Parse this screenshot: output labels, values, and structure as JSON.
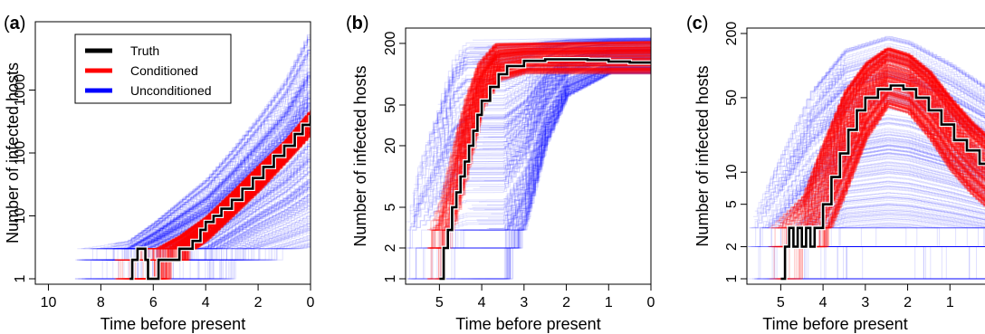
{
  "legend": {
    "items": [
      {
        "label": "Truth",
        "color": "#000000"
      },
      {
        "label": "Conditioned",
        "color": "#ff0000"
      },
      {
        "label": "Unconditioned",
        "color": "#0000ff"
      }
    ]
  },
  "chart_data": [
    {
      "panel": "(a)",
      "type": "line",
      "xlabel": "Time before present",
      "ylabel": "Number of infected hosts",
      "x_reversed": true,
      "y_scale": "log",
      "xlim": [
        10.5,
        0
      ],
      "ylim": [
        1,
        10000
      ],
      "xticks": [
        "10",
        "8",
        "6",
        "4",
        "2",
        "0"
      ],
      "xtick_values": [
        10,
        8,
        6,
        4,
        2,
        0
      ],
      "yticks": [
        "1",
        "10",
        "100",
        "1000"
      ],
      "ytick_values": [
        1,
        10,
        100,
        1000
      ],
      "legend_position": "top-left",
      "series": [
        {
          "name": "Truth",
          "color": "#000000",
          "points": [
            [
              6.9,
              1
            ],
            [
              6.8,
              2
            ],
            [
              6.6,
              3
            ],
            [
              6.3,
              2
            ],
            [
              6.2,
              1
            ],
            [
              5.9,
              1
            ],
            [
              5.8,
              2
            ],
            [
              5.2,
              2
            ],
            [
              5.0,
              3
            ],
            [
              4.7,
              3
            ],
            [
              4.5,
              4
            ],
            [
              4.2,
              6
            ],
            [
              4.0,
              8
            ],
            [
              3.7,
              10
            ],
            [
              3.4,
              13
            ],
            [
              3.0,
              18
            ],
            [
              2.6,
              27
            ],
            [
              2.2,
              40
            ],
            [
              1.8,
              60
            ],
            [
              1.4,
              90
            ],
            [
              1.0,
              130
            ],
            [
              0.6,
              200
            ],
            [
              0.3,
              280
            ],
            [
              0,
              400
            ]
          ]
        },
        {
          "name": "Conditioned",
          "color": "#ff0000",
          "band_low": [
            [
              7.5,
              1
            ],
            [
              6,
              1
            ],
            [
              5,
              2
            ],
            [
              4,
              4
            ],
            [
              3,
              10
            ],
            [
              2,
              25
            ],
            [
              1,
              70
            ],
            [
              0,
              200
            ]
          ],
          "band_high": [
            [
              7.5,
              2
            ],
            [
              6,
              3
            ],
            [
              5,
              5
            ],
            [
              4,
              10
            ],
            [
              3,
              25
            ],
            [
              2,
              65
            ],
            [
              1,
              160
            ],
            [
              0,
              500
            ]
          ]
        },
        {
          "name": "Unconditioned",
          "color": "#0000ff",
          "band_low": [
            [
              9,
              1
            ],
            [
              6,
              1
            ],
            [
              4,
              1
            ],
            [
              2,
              2
            ],
            [
              0,
              3
            ]
          ],
          "band_high": [
            [
              9,
              3
            ],
            [
              7,
              4
            ],
            [
              6,
              8
            ],
            [
              4,
              40
            ],
            [
              3,
              120
            ],
            [
              2,
              400
            ],
            [
              1,
              1500
            ],
            [
              0,
              10000
            ]
          ]
        }
      ]
    },
    {
      "panel": "(b)",
      "type": "line",
      "xlabel": "Time before present",
      "ylabel": "Number of infected hosts",
      "x_reversed": true,
      "y_scale": "log",
      "xlim": [
        5.8,
        0
      ],
      "ylim": [
        1,
        250
      ],
      "xticks": [
        "5",
        "4",
        "3",
        "2",
        "1",
        "0"
      ],
      "xtick_values": [
        5,
        4,
        3,
        2,
        1,
        0
      ],
      "yticks": [
        "1",
        "2",
        "5",
        "20",
        "50",
        "200"
      ],
      "ytick_values": [
        1,
        2,
        5,
        20,
        50,
        200
      ],
      "series": [
        {
          "name": "Truth",
          "color": "#000000",
          "points": [
            [
              5.0,
              1
            ],
            [
              4.9,
              2
            ],
            [
              4.8,
              3
            ],
            [
              4.7,
              5
            ],
            [
              4.6,
              7
            ],
            [
              4.5,
              10
            ],
            [
              4.4,
              14
            ],
            [
              4.3,
              20
            ],
            [
              4.2,
              28
            ],
            [
              4.1,
              40
            ],
            [
              4.0,
              55
            ],
            [
              3.8,
              75
            ],
            [
              3.6,
              100
            ],
            [
              3.4,
              120
            ],
            [
              3.0,
              135
            ],
            [
              2.5,
              140
            ],
            [
              2.0,
              140
            ],
            [
              1.5,
              138
            ],
            [
              1.0,
              133
            ],
            [
              0.5,
              130
            ],
            [
              0,
              128
            ]
          ]
        },
        {
          "name": "Conditioned",
          "color": "#ff0000",
          "band_low": [
            [
              5.1,
              1
            ],
            [
              4.8,
              2
            ],
            [
              4.5,
              6
            ],
            [
              4.2,
              20
            ],
            [
              4.0,
              45
            ],
            [
              3.6,
              85
            ],
            [
              3,
              100
            ],
            [
              0,
              100
            ]
          ],
          "band_high": [
            [
              5.3,
              3
            ],
            [
              5.0,
              6
            ],
            [
              4.7,
              20
            ],
            [
              4.4,
              60
            ],
            [
              4.1,
              130
            ],
            [
              3.7,
              200
            ],
            [
              0,
              210
            ]
          ]
        },
        {
          "name": "Unconditioned",
          "color": "#0000ff",
          "band_low": [
            [
              5.8,
              1
            ],
            [
              3.5,
              1
            ],
            [
              3,
              3
            ],
            [
              2.5,
              20
            ],
            [
              2,
              60
            ],
            [
              1,
              100
            ],
            [
              0,
              100
            ]
          ],
          "band_high": [
            [
              5.8,
              4
            ],
            [
              5.5,
              15
            ],
            [
              5.0,
              60
            ],
            [
              4.7,
              150
            ],
            [
              4.4,
              220
            ],
            [
              0,
              230
            ]
          ]
        }
      ]
    },
    {
      "panel": "(c)",
      "type": "line",
      "xlabel": "Time before present",
      "ylabel": "Number of infected hosts",
      "x_reversed": true,
      "y_scale": "log",
      "xlim": [
        5.8,
        0
      ],
      "ylim": [
        1,
        200
      ],
      "xticks": [
        "5",
        "4",
        "3",
        "2",
        "1",
        "0"
      ],
      "xtick_values": [
        5,
        4,
        3,
        2,
        1,
        0
      ],
      "yticks": [
        "1",
        "2",
        "5",
        "10",
        "50",
        "200"
      ],
      "ytick_values": [
        1,
        2,
        5,
        10,
        50,
        200
      ],
      "series": [
        {
          "name": "Truth",
          "color": "#000000",
          "points": [
            [
              5.0,
              1
            ],
            [
              4.9,
              2
            ],
            [
              4.8,
              3
            ],
            [
              4.7,
              2
            ],
            [
              4.6,
              3
            ],
            [
              4.5,
              2
            ],
            [
              4.4,
              3
            ],
            [
              4.3,
              2
            ],
            [
              4.2,
              3
            ],
            [
              4.0,
              5
            ],
            [
              3.8,
              9
            ],
            [
              3.6,
              15
            ],
            [
              3.4,
              25
            ],
            [
              3.2,
              38
            ],
            [
              3.0,
              50
            ],
            [
              2.7,
              60
            ],
            [
              2.4,
              65
            ],
            [
              2.1,
              60
            ],
            [
              1.8,
              50
            ],
            [
              1.5,
              38
            ],
            [
              1.2,
              28
            ],
            [
              0.9,
              20
            ],
            [
              0.6,
              16
            ],
            [
              0.3,
              12
            ],
            [
              0.1,
              10
            ],
            [
              0,
              8
            ]
          ]
        },
        {
          "name": "Conditioned",
          "color": "#ff0000",
          "band_low": [
            [
              5,
              1
            ],
            [
              4,
              2
            ],
            [
              3.5,
              6
            ],
            [
              3,
              20
            ],
            [
              2.5,
              40
            ],
            [
              2,
              35
            ],
            [
              1.5,
              20
            ],
            [
              1,
              10
            ],
            [
              0.5,
              6
            ],
            [
              0,
              4
            ]
          ],
          "band_high": [
            [
              5.3,
              3
            ],
            [
              4.5,
              6
            ],
            [
              4,
              20
            ],
            [
              3.5,
              60
            ],
            [
              3,
              110
            ],
            [
              2.5,
              150
            ],
            [
              2,
              130
            ],
            [
              1.5,
              90
            ],
            [
              1,
              50
            ],
            [
              0.5,
              30
            ],
            [
              0,
              20
            ]
          ]
        },
        {
          "name": "Unconditioned",
          "color": "#0000ff",
          "band_low": [
            [
              5.8,
              1
            ],
            [
              3,
              1
            ],
            [
              2,
              1
            ],
            [
              1,
              1
            ],
            [
              0,
              1
            ]
          ],
          "band_high": [
            [
              5.8,
              3
            ],
            [
              5,
              15
            ],
            [
              4.3,
              60
            ],
            [
              3.5,
              150
            ],
            [
              2.5,
              200
            ],
            [
              2,
              180
            ],
            [
              1,
              110
            ],
            [
              0,
              60
            ]
          ]
        }
      ]
    }
  ]
}
